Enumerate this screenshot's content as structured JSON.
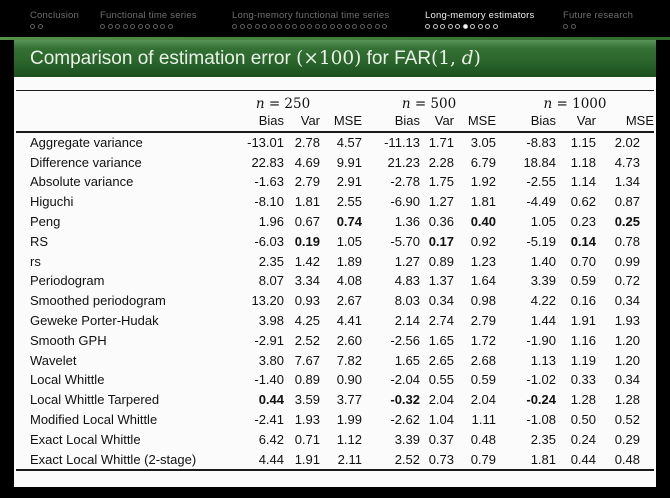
{
  "nav": {
    "sections": [
      {
        "label": "Conclusion",
        "dots": 2,
        "active": false,
        "filled": -1
      },
      {
        "label": "Functional time series",
        "dots": 10,
        "active": false,
        "filled": -1
      },
      {
        "label": "Long-memory functional time series",
        "dots": 21,
        "active": false,
        "filled": -1
      },
      {
        "label": "Long-memory estimators",
        "dots": 10,
        "active": true,
        "filled": 5
      },
      {
        "label": "Future research",
        "dots": 2,
        "active": false,
        "filled": -1
      }
    ]
  },
  "title": {
    "main": "Comparison of estimation error ",
    "math1": "(×100)",
    "mid": " for FAR",
    "math2_pre": "(1, ",
    "math2_var": "d",
    "math2_post": ")"
  },
  "table": {
    "n_symbol": "n",
    "groups": [
      {
        "eq": "= 250"
      },
      {
        "eq": "= 500"
      },
      {
        "eq": "= 1000"
      }
    ],
    "subheaders": [
      "Bias",
      "Var",
      "MSE"
    ],
    "rows": [
      {
        "label": "Aggregate variance",
        "values": [
          "-13.01",
          "2.78",
          "4.57",
          "-11.13",
          "1.71",
          "3.05",
          "-8.83",
          "1.15",
          "2.02"
        ],
        "bold": []
      },
      {
        "label": "Difference variance",
        "values": [
          "22.83",
          "4.69",
          "9.91",
          "21.23",
          "2.28",
          "6.79",
          "18.84",
          "1.18",
          "4.73"
        ],
        "bold": []
      },
      {
        "label": "Absolute variance",
        "values": [
          "-1.63",
          "2.79",
          "2.91",
          "-2.78",
          "1.75",
          "1.92",
          "-2.55",
          "1.14",
          "1.34"
        ],
        "bold": []
      },
      {
        "label": "Higuchi",
        "values": [
          "-8.10",
          "1.81",
          "2.55",
          "-6.90",
          "1.27",
          "1.81",
          "-4.49",
          "0.62",
          "0.87"
        ],
        "bold": []
      },
      {
        "label": "Peng",
        "values": [
          "1.96",
          "0.67",
          "0.74",
          "1.36",
          "0.36",
          "0.40",
          "1.05",
          "0.23",
          "0.25"
        ],
        "bold": [
          2,
          5,
          8
        ]
      },
      {
        "label": "RS",
        "values": [
          "-6.03",
          "0.19",
          "1.05",
          "-5.70",
          "0.17",
          "0.92",
          "-5.19",
          "0.14",
          "0.78"
        ],
        "bold": [
          1,
          4,
          7
        ]
      },
      {
        "label": "rs",
        "values": [
          "2.35",
          "1.42",
          "1.89",
          "1.27",
          "0.89",
          "1.23",
          "1.40",
          "0.70",
          "0.99"
        ],
        "bold": []
      },
      {
        "label": "Periodogram",
        "values": [
          "8.07",
          "3.34",
          "4.08",
          "4.83",
          "1.37",
          "1.64",
          "3.39",
          "0.59",
          "0.72"
        ],
        "bold": []
      },
      {
        "label": "Smoothed periodogram",
        "values": [
          "13.20",
          "0.93",
          "2.67",
          "8.03",
          "0.34",
          "0.98",
          "4.22",
          "0.16",
          "0.34"
        ],
        "bold": []
      },
      {
        "label": "Geweke Porter-Hudak",
        "values": [
          "3.98",
          "4.25",
          "4.41",
          "2.14",
          "2.74",
          "2.79",
          "1.44",
          "1.91",
          "1.93"
        ],
        "bold": []
      },
      {
        "label": "Smooth GPH",
        "values": [
          "-2.91",
          "2.52",
          "2.60",
          "-2.56",
          "1.65",
          "1.72",
          "-1.90",
          "1.16",
          "1.20"
        ],
        "bold": []
      },
      {
        "label": "Wavelet",
        "values": [
          "3.80",
          "7.67",
          "7.82",
          "1.65",
          "2.65",
          "2.68",
          "1.13",
          "1.19",
          "1.20"
        ],
        "bold": []
      },
      {
        "label": "Local Whittle",
        "values": [
          "-1.40",
          "0.89",
          "0.90",
          "-2.04",
          "0.55",
          "0.59",
          "-1.02",
          "0.33",
          "0.34"
        ],
        "bold": []
      },
      {
        "label": "Local Whittle Tarpered",
        "values": [
          "0.44",
          "3.59",
          "3.77",
          "-0.32",
          "2.04",
          "2.04",
          "-0.24",
          "1.28",
          "1.28"
        ],
        "bold": [
          0,
          3,
          6
        ]
      },
      {
        "label": "Modified Local Whittle",
        "values": [
          "-2.41",
          "1.93",
          "1.99",
          "-2.62",
          "1.04",
          "1.11",
          "-1.08",
          "0.50",
          "0.52"
        ],
        "bold": []
      },
      {
        "label": "Exact Local Whittle",
        "values": [
          "6.42",
          "0.71",
          "1.12",
          "3.39",
          "0.37",
          "0.48",
          "2.35",
          "0.24",
          "0.29"
        ],
        "bold": []
      },
      {
        "label": "Exact Local Whittle (2-stage)",
        "values": [
          "4.44",
          "1.91",
          "2.11",
          "2.52",
          "0.73",
          "0.79",
          "1.81",
          "0.44",
          "0.48"
        ],
        "bold": []
      }
    ],
    "colors": {
      "header_green": "#2b662b",
      "slide_bg": "#fbfbfb",
      "frame_bg": "#000000"
    }
  }
}
